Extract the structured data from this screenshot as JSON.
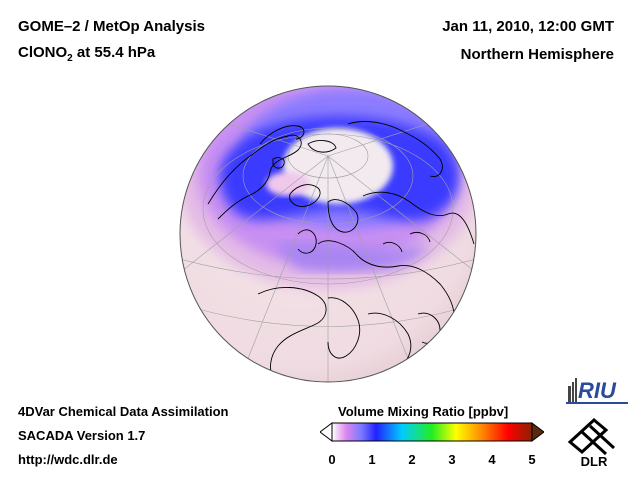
{
  "header": {
    "title_line1": "GOME–2 / MetOp Analysis",
    "title_species": "ClONO",
    "title_sub": "2",
    "title_level": " at 55.4 hPa",
    "date": "Jan 11, 2010, 12:00 GMT",
    "region": "Northern Hemisphere"
  },
  "footer": {
    "line1": "4DVar Chemical Data Assimilation",
    "line2": "SACADA Version 1.7",
    "line3": "http://wdc.dlr.de"
  },
  "colorbar": {
    "title": "Volume Mixing Ratio [ppbv]",
    "ticks": [
      "0",
      "1",
      "2",
      "3",
      "4",
      "5"
    ],
    "range": [
      0,
      5
    ],
    "colors": [
      "#ffffff",
      "#dd88ee",
      "#7777ff",
      "#2222ff",
      "#00ccff",
      "#22ee22",
      "#ffff00",
      "#ff8800",
      "#ff0000",
      "#882200"
    ]
  },
  "map": {
    "projection": "orthographic",
    "hemisphere": "northern",
    "colors": {
      "background_field": "#f1dce2",
      "low_pink": "#e8bfe6",
      "mid_purple": "#c07ff0",
      "high_blue": "#3a3aff",
      "polar_core": "#f4eef0",
      "coastline": "#000000",
      "graticule": "#a0a0a0"
    }
  },
  "logos": {
    "riu_text": "RIU",
    "dlr_text": "DLR"
  }
}
